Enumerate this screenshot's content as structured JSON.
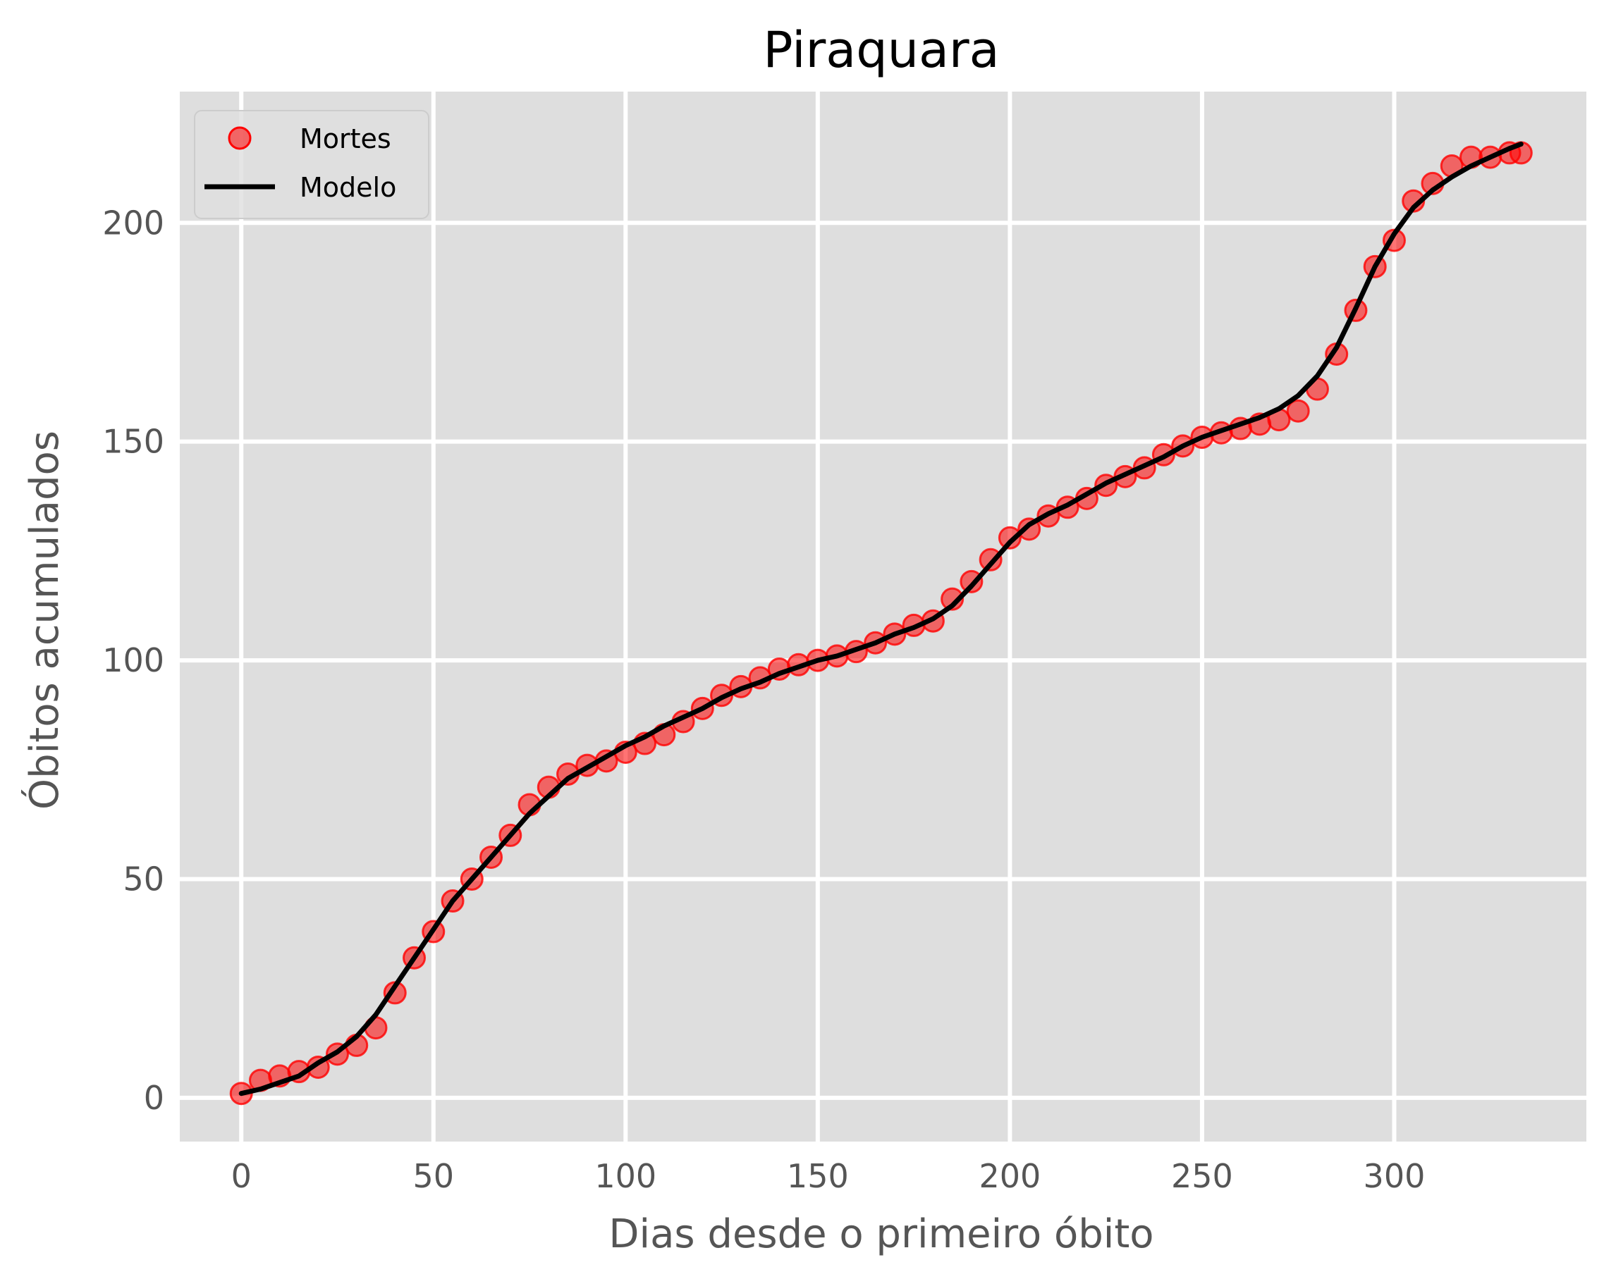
{
  "chart_data": {
    "type": "line",
    "title": "Piraquara",
    "xlabel": "Dias desde o primeiro óbito",
    "ylabel": "Óbitos acumulados",
    "xlim": [
      -16,
      350
    ],
    "ylim": [
      -10,
      230
    ],
    "xticks": [
      0,
      50,
      100,
      150,
      200,
      250,
      300
    ],
    "yticks": [
      0,
      50,
      100,
      150,
      200
    ],
    "grid": true,
    "legend_position": "top-left",
    "colors": {
      "plot_background": "#dedede",
      "grid": "#ffffff",
      "mortes": "#ff0000",
      "modelo": "#000000"
    },
    "series": [
      {
        "name": "Mortes",
        "style": "scatter",
        "x": [
          0,
          5,
          10,
          15,
          20,
          25,
          30,
          35,
          40,
          45,
          50,
          55,
          60,
          65,
          70,
          75,
          80,
          85,
          90,
          95,
          100,
          105,
          110,
          115,
          120,
          125,
          130,
          135,
          140,
          145,
          150,
          155,
          160,
          165,
          170,
          175,
          180,
          185,
          190,
          195,
          200,
          205,
          210,
          215,
          220,
          225,
          230,
          235,
          240,
          245,
          250,
          255,
          260,
          265,
          270,
          275,
          280,
          285,
          290,
          295,
          300,
          305,
          310,
          315,
          320,
          325,
          330,
          333
        ],
        "y": [
          1,
          4,
          5,
          6,
          7,
          10,
          12,
          16,
          24,
          32,
          38,
          45,
          50,
          55,
          60,
          67,
          71,
          74,
          76,
          77,
          79,
          81,
          83,
          86,
          89,
          92,
          94,
          96,
          98,
          99,
          100,
          101,
          102,
          104,
          106,
          108,
          109,
          114,
          118,
          123,
          128,
          130,
          133,
          135,
          137,
          140,
          142,
          144,
          147,
          149,
          151,
          152,
          153,
          154,
          155,
          157,
          162,
          170,
          180,
          190,
          196,
          205,
          209,
          213,
          215,
          215,
          216,
          216
        ]
      },
      {
        "name": "Modelo",
        "style": "line",
        "x": [
          0,
          5,
          10,
          15,
          20,
          25,
          30,
          35,
          40,
          45,
          50,
          55,
          60,
          65,
          70,
          75,
          80,
          85,
          90,
          95,
          100,
          105,
          110,
          115,
          120,
          125,
          130,
          135,
          140,
          145,
          150,
          155,
          160,
          165,
          170,
          175,
          180,
          185,
          190,
          195,
          200,
          205,
          210,
          215,
          220,
          225,
          230,
          235,
          240,
          245,
          250,
          255,
          260,
          265,
          270,
          275,
          280,
          285,
          290,
          295,
          300,
          305,
          310,
          315,
          320,
          325,
          330,
          333
        ],
        "y": [
          1,
          2,
          3.5,
          5,
          8,
          10.5,
          14,
          19,
          25.5,
          32,
          38.5,
          45,
          50,
          55,
          60,
          65,
          69,
          73,
          75.5,
          78,
          80.5,
          82.5,
          85,
          87,
          89,
          91.5,
          93.5,
          95,
          97,
          98.5,
          100,
          101,
          102.5,
          104,
          106,
          107.5,
          109.5,
          112.5,
          117,
          122,
          127,
          131,
          133.5,
          135.5,
          138,
          140.5,
          142.5,
          144.5,
          146.5,
          149,
          151,
          152.5,
          154,
          155.5,
          157.5,
          160.5,
          165,
          171.5,
          180.5,
          190,
          197.5,
          203.5,
          207.5,
          210.5,
          213,
          215,
          217,
          218
        ]
      }
    ]
  }
}
